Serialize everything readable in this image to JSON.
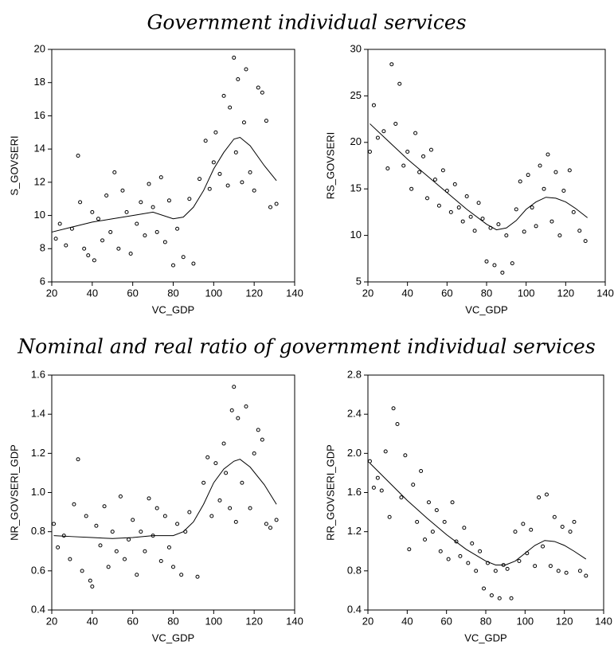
{
  "section_titles": [
    "Government individual services",
    "Nominal and real ratio of government individual services"
  ],
  "chart_data": [
    {
      "type": "scatter",
      "xlabel": "VC_GDP",
      "ylabel": "S_GOVSERI",
      "xlim": [
        20,
        140
      ],
      "xticks": [
        20,
        40,
        60,
        80,
        100,
        120,
        140
      ],
      "ylim": [
        6,
        20
      ],
      "yticks": [
        6,
        8,
        10,
        12,
        14,
        16,
        18,
        20
      ],
      "series": [
        {
          "mode": "markers",
          "color": "#000000",
          "x": [
            22,
            24,
            27,
            30,
            33,
            34,
            36,
            38,
            40,
            41,
            43,
            45,
            47,
            49,
            51,
            53,
            55,
            57,
            59,
            62,
            64,
            66,
            68,
            70,
            72,
            74,
            76,
            78,
            80,
            82,
            85,
            88,
            90,
            93,
            96,
            98,
            100,
            101,
            103,
            105,
            107,
            108,
            110,
            111,
            112,
            114,
            115,
            116,
            118,
            120,
            122,
            124,
            126,
            128,
            131
          ],
          "values": [
            8.6,
            9.5,
            8.2,
            9.2,
            13.6,
            10.8,
            8.0,
            7.6,
            10.2,
            7.3,
            9.8,
            8.5,
            11.2,
            9.0,
            12.6,
            8.0,
            11.5,
            10.2,
            7.7,
            9.5,
            10.8,
            8.8,
            11.9,
            10.5,
            9.0,
            12.3,
            8.4,
            10.9,
            7.0,
            9.2,
            7.5,
            11.0,
            7.1,
            12.2,
            14.5,
            11.6,
            13.2,
            15.0,
            12.5,
            17.2,
            11.8,
            16.5,
            19.5,
            13.8,
            18.2,
            12.0,
            15.6,
            18.8,
            12.6,
            11.5,
            17.7,
            17.4,
            15.7,
            10.5,
            10.7
          ]
        },
        {
          "mode": "line",
          "color": "#000000",
          "x": [
            20,
            30,
            40,
            50,
            60,
            70,
            80,
            85,
            90,
            95,
            100,
            105,
            110,
            113,
            118,
            125,
            131
          ],
          "values": [
            9.0,
            9.3,
            9.6,
            9.8,
            10.0,
            10.2,
            9.8,
            9.9,
            10.5,
            11.5,
            12.8,
            13.8,
            14.6,
            14.7,
            14.2,
            13.0,
            12.1
          ]
        }
      ]
    },
    {
      "type": "scatter",
      "xlabel": "VC_GDP",
      "ylabel": "RS_GOVSERI",
      "xlim": [
        20,
        140
      ],
      "xticks": [
        20,
        40,
        60,
        80,
        100,
        120,
        140
      ],
      "ylim": [
        5,
        30
      ],
      "yticks": [
        5,
        10,
        15,
        20,
        25,
        30
      ],
      "series": [
        {
          "mode": "markers",
          "color": "#000000",
          "x": [
            21,
            23,
            25,
            28,
            30,
            32,
            34,
            36,
            38,
            40,
            42,
            44,
            46,
            48,
            50,
            52,
            54,
            56,
            58,
            60,
            62,
            64,
            66,
            68,
            70,
            72,
            74,
            76,
            78,
            80,
            82,
            84,
            86,
            88,
            90,
            93,
            95,
            97,
            99,
            101,
            103,
            105,
            107,
            109,
            111,
            113,
            115,
            117,
            119,
            122,
            124,
            127,
            130
          ],
          "values": [
            19.0,
            24.0,
            20.5,
            21.2,
            17.2,
            28.4,
            22.0,
            26.3,
            17.5,
            19.0,
            15.0,
            21.0,
            16.8,
            18.5,
            14.0,
            19.2,
            16.0,
            13.2,
            17.0,
            14.8,
            12.5,
            15.5,
            13.0,
            11.5,
            14.2,
            12.0,
            10.5,
            13.5,
            11.8,
            7.2,
            10.8,
            6.8,
            11.2,
            6.0,
            10.0,
            7.0,
            12.8,
            15.8,
            10.4,
            16.5,
            13.0,
            11.0,
            17.5,
            15.0,
            18.7,
            11.5,
            16.8,
            10.0,
            14.8,
            17.0,
            12.5,
            10.5,
            9.4
          ]
        },
        {
          "mode": "line",
          "color": "#000000",
          "x": [
            21,
            30,
            40,
            50,
            60,
            70,
            80,
            85,
            90,
            95,
            100,
            105,
            110,
            115,
            120,
            125,
            131
          ],
          "values": [
            22.0,
            20.2,
            18.2,
            16.4,
            14.6,
            12.8,
            11.2,
            10.6,
            10.8,
            11.6,
            12.8,
            13.6,
            14.1,
            14.0,
            13.6,
            12.9,
            11.9
          ]
        }
      ]
    },
    {
      "type": "scatter",
      "xlabel": "VC_GDP",
      "ylabel": "NR_GOVSERI_GDP",
      "xlim": [
        20,
        140
      ],
      "xticks": [
        20,
        40,
        60,
        80,
        100,
        120,
        140
      ],
      "ylim": [
        0.4,
        1.6
      ],
      "yticks": [
        0.4,
        0.6,
        0.8,
        {
          "value": 1,
          "label": "1.0"
        },
        1.2,
        1.4,
        1.6
      ],
      "series": [
        {
          "mode": "markers",
          "color": "#000000",
          "x": [
            21,
            23,
            26,
            29,
            31,
            33,
            35,
            37,
            39,
            40,
            42,
            44,
            46,
            48,
            50,
            52,
            54,
            56,
            58,
            60,
            62,
            64,
            66,
            68,
            70,
            72,
            74,
            76,
            78,
            80,
            82,
            84,
            86,
            88,
            92,
            95,
            97,
            99,
            101,
            103,
            105,
            106,
            108,
            109,
            110,
            111,
            112,
            114,
            116,
            118,
            120,
            122,
            124,
            126,
            128,
            131
          ],
          "values": [
            0.84,
            0.72,
            0.78,
            0.66,
            0.94,
            1.17,
            0.6,
            0.88,
            0.55,
            0.52,
            0.83,
            0.73,
            0.93,
            0.62,
            0.8,
            0.7,
            0.98,
            0.66,
            0.76,
            0.86,
            0.58,
            0.8,
            0.7,
            0.97,
            0.78,
            0.92,
            0.65,
            0.88,
            0.72,
            0.62,
            0.84,
            0.58,
            0.8,
            0.9,
            0.57,
            1.05,
            1.18,
            0.88,
            1.15,
            0.96,
            1.25,
            1.1,
            0.92,
            1.42,
            1.54,
            0.85,
            1.38,
            1.05,
            1.44,
            0.92,
            1.2,
            1.32,
            1.27,
            0.84,
            0.82,
            0.86
          ]
        },
        {
          "mode": "line",
          "color": "#000000",
          "x": [
            21,
            30,
            40,
            50,
            60,
            70,
            80,
            85,
            90,
            95,
            100,
            105,
            110,
            113,
            118,
            125,
            131
          ],
          "values": [
            0.78,
            0.775,
            0.77,
            0.765,
            0.77,
            0.78,
            0.78,
            0.8,
            0.85,
            0.94,
            1.05,
            1.12,
            1.16,
            1.17,
            1.13,
            1.04,
            0.94
          ]
        }
      ]
    },
    {
      "type": "scatter",
      "xlabel": "VC_GDP",
      "ylabel": "RR_GOVSERI_GDP",
      "xlim": [
        20,
        140
      ],
      "xticks": [
        20,
        40,
        60,
        80,
        100,
        120,
        140
      ],
      "ylim": [
        0.4,
        2.8
      ],
      "yticks": [
        0.4,
        0.8,
        1.2,
        1.6,
        {
          "value": 2,
          "label": "2.0"
        },
        2.4,
        2.8
      ],
      "series": [
        {
          "mode": "markers",
          "color": "#000000",
          "x": [
            21,
            23,
            25,
            27,
            29,
            31,
            33,
            35,
            37,
            39,
            41,
            43,
            45,
            47,
            49,
            51,
            53,
            55,
            57,
            59,
            61,
            63,
            65,
            67,
            69,
            71,
            73,
            75,
            77,
            79,
            81,
            83,
            85,
            87,
            89,
            91,
            93,
            95,
            97,
            99,
            101,
            103,
            105,
            107,
            109,
            111,
            113,
            115,
            117,
            119,
            121,
            123,
            125,
            128,
            131
          ],
          "values": [
            1.92,
            1.65,
            1.75,
            1.62,
            2.02,
            1.35,
            2.46,
            2.3,
            1.55,
            1.98,
            1.02,
            1.68,
            1.3,
            1.82,
            1.12,
            1.5,
            1.2,
            1.42,
            1.0,
            1.3,
            0.92,
            1.5,
            1.1,
            0.95,
            1.24,
            0.88,
            1.08,
            0.8,
            1.0,
            0.62,
            0.88,
            0.55,
            0.8,
            0.52,
            0.86,
            0.82,
            0.52,
            1.2,
            0.9,
            1.28,
            0.98,
            1.22,
            0.85,
            1.55,
            1.05,
            1.58,
            0.85,
            1.35,
            0.8,
            1.25,
            0.78,
            1.2,
            1.3,
            0.8,
            0.75
          ]
        },
        {
          "mode": "line",
          "color": "#000000",
          "x": [
            21,
            30,
            40,
            50,
            60,
            70,
            80,
            85,
            90,
            95,
            100,
            105,
            110,
            115,
            120,
            125,
            131
          ],
          "values": [
            1.9,
            1.72,
            1.52,
            1.34,
            1.17,
            1.02,
            0.9,
            0.86,
            0.86,
            0.9,
            0.98,
            1.06,
            1.11,
            1.1,
            1.06,
            1.0,
            0.92
          ]
        }
      ]
    }
  ]
}
